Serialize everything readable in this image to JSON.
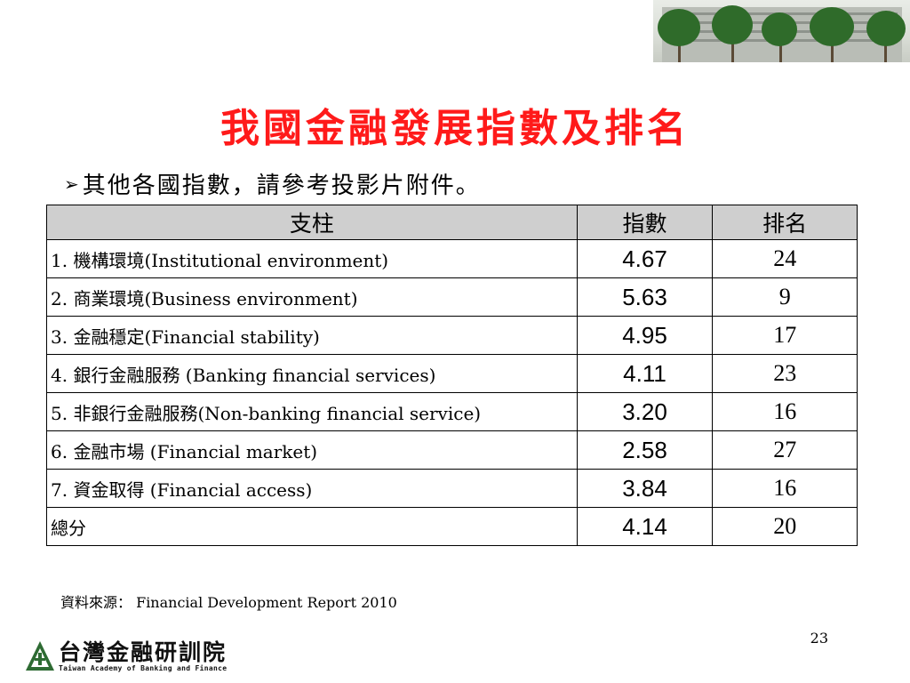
{
  "slide": {
    "title": "我國金融發展指數及排名",
    "bullet": "其他各國指數，請參考投影片附件。",
    "bullet_icon": "arrow-bullet-icon",
    "title_color": "#ff1a1a"
  },
  "table": {
    "headers": [
      "支柱",
      "指數",
      "排名"
    ],
    "rows": [
      {
        "label": "1. 機構環境(Institutional environment)",
        "index": "4.67",
        "rank": "24"
      },
      {
        "label": "2. 商業環境(Business environment)",
        "index": "5.63",
        "rank": "9"
      },
      {
        "label": "3. 金融穩定(Financial stability)",
        "index": "4.95",
        "rank": "17"
      },
      {
        "label": "4. 銀行金融服務 (Banking financial services)",
        "index": "4.11",
        "rank": "23"
      },
      {
        "label": "5. 非銀行金融服務(Non-banking financial service)",
        "index": "3.20",
        "rank": "16"
      },
      {
        "label": "6. 金融市場 (Financial market)",
        "index": "2.58",
        "rank": "27"
      },
      {
        "label": "7. 資金取得 (Financial access)",
        "index": "3.84",
        "rank": "16"
      },
      {
        "label": "總分",
        "index": "4.14",
        "rank": "20"
      }
    ]
  },
  "footer": {
    "source": "資料來源： Financial Development Report 2010",
    "page_number": "23",
    "logo_name": "台灣金融研訓院",
    "logo_subtitle": "Taiwan Academy of Banking and Finance"
  }
}
